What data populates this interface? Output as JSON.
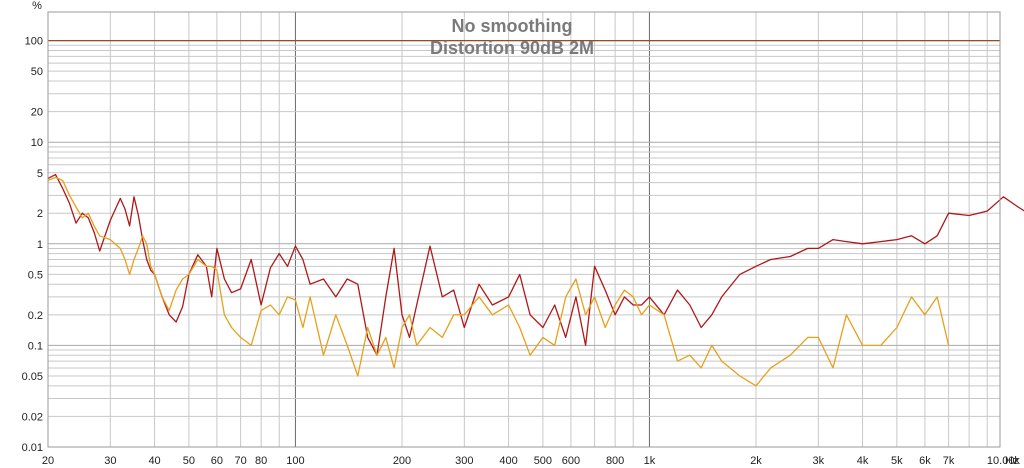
{
  "chart_data": {
    "type": "line",
    "title": "No smoothing",
    "subtitle": "Distortion 90dB 2M",
    "y_unit": "%",
    "x_unit": "Hz",
    "x_scale": "log",
    "y_scale": "log",
    "xlim": [
      20,
      20000
    ],
    "ylim": [
      0.01,
      200
    ],
    "grid": true,
    "colors": {
      "background": "#ffffff",
      "plot_border": "#9a9a9a",
      "grid_minor": "#c8c8c8",
      "grid_major": "#6a6a6a",
      "reference_line": "#9b4a1c",
      "series_red": "#b01818",
      "series_orange": "#e8a01c"
    },
    "x_ticks": [
      {
        "value": 20,
        "label": "20"
      },
      {
        "value": 30,
        "label": "30"
      },
      {
        "value": 40,
        "label": "40"
      },
      {
        "value": 50,
        "label": "50"
      },
      {
        "value": 60,
        "label": "60"
      },
      {
        "value": 70,
        "label": "70"
      },
      {
        "value": 80,
        "label": "80"
      },
      {
        "value": 100,
        "label": "100"
      },
      {
        "value": 200,
        "label": "200"
      },
      {
        "value": 300,
        "label": "300"
      },
      {
        "value": 400,
        "label": "400"
      },
      {
        "value": 500,
        "label": "500"
      },
      {
        "value": 600,
        "label": "600"
      },
      {
        "value": 800,
        "label": "800"
      },
      {
        "value": 1000,
        "label": "1k"
      },
      {
        "value": 2000,
        "label": "2k"
      },
      {
        "value": 3000,
        "label": "3k"
      },
      {
        "value": 4000,
        "label": "4k"
      },
      {
        "value": 5000,
        "label": "5k"
      },
      {
        "value": 6000,
        "label": "6k"
      },
      {
        "value": 7000,
        "label": "7k"
      },
      {
        "value": 10000,
        "label": "10.00k"
      }
    ],
    "y_ticks": [
      {
        "value": 100,
        "label": "100"
      },
      {
        "value": 50,
        "label": "50"
      },
      {
        "value": 20,
        "label": "20"
      },
      {
        "value": 10,
        "label": "10"
      },
      {
        "value": 5,
        "label": "5"
      },
      {
        "value": 2,
        "label": "2"
      },
      {
        "value": 1,
        "label": "1"
      },
      {
        "value": 0.5,
        "label": "0.5"
      },
      {
        "value": 0.2,
        "label": "0.2"
      },
      {
        "value": 0.1,
        "label": "0.1"
      },
      {
        "value": 0.05,
        "label": "0.05"
      },
      {
        "value": 0.02,
        "label": "0.02"
      },
      {
        "value": 0.01,
        "label": "0.01"
      }
    ],
    "reference_line": {
      "y": 100
    },
    "series": [
      {
        "color": "#b01818",
        "x": [
          20,
          21,
          22,
          23,
          24,
          25,
          26,
          27,
          28,
          30,
          32,
          33,
          34,
          35,
          36,
          37,
          38,
          39,
          40,
          42,
          44,
          46,
          48,
          50,
          53,
          56,
          58,
          60,
          63,
          66,
          70,
          75,
          80,
          85,
          90,
          95,
          100,
          105,
          110,
          120,
          130,
          140,
          150,
          160,
          170,
          180,
          190,
          200,
          210,
          220,
          240,
          260,
          280,
          300,
          330,
          360,
          400,
          430,
          460,
          500,
          540,
          580,
          620,
          660,
          700,
          750,
          800,
          850,
          900,
          950,
          1000,
          1100,
          1200,
          1300,
          1400,
          1500,
          1600,
          1800,
          2000,
          2200,
          2500,
          2800,
          3000,
          3300,
          3600,
          4000,
          4500,
          5000,
          5500,
          6000,
          6500,
          7000,
          8000,
          9000,
          10000,
          11000,
          12000,
          13000
        ],
        "y": [
          4.4,
          4.8,
          3.5,
          2.5,
          1.6,
          2.0,
          1.8,
          1.3,
          0.85,
          1.7,
          2.8,
          2.2,
          1.5,
          2.9,
          1.9,
          1.1,
          0.7,
          0.55,
          0.5,
          0.3,
          0.2,
          0.17,
          0.24,
          0.5,
          0.78,
          0.6,
          0.3,
          0.9,
          0.45,
          0.33,
          0.36,
          0.7,
          0.25,
          0.58,
          0.8,
          0.6,
          0.95,
          0.7,
          0.4,
          0.45,
          0.3,
          0.45,
          0.4,
          0.12,
          0.08,
          0.3,
          0.9,
          0.2,
          0.12,
          0.25,
          0.95,
          0.3,
          0.35,
          0.15,
          0.4,
          0.25,
          0.3,
          0.5,
          0.2,
          0.15,
          0.25,
          0.12,
          0.3,
          0.1,
          0.6,
          0.35,
          0.2,
          0.3,
          0.25,
          0.25,
          0.3,
          0.2,
          0.35,
          0.25,
          0.15,
          0.2,
          0.3,
          0.5,
          0.6,
          0.7,
          0.75,
          0.9,
          0.9,
          1.1,
          1.05,
          1.0,
          1.05,
          1.1,
          1.2,
          1.0,
          1.2,
          2.0,
          1.9,
          2.1,
          2.9,
          2.3,
          1.9,
          1.8
        ]
      },
      {
        "color": "#e8a01c",
        "x": [
          20,
          21,
          22,
          23,
          24,
          25,
          26,
          27,
          28,
          30,
          32,
          33,
          34,
          35,
          36,
          37,
          38,
          39,
          40,
          42,
          44,
          46,
          48,
          50,
          53,
          56,
          58,
          60,
          63,
          66,
          70,
          75,
          80,
          85,
          90,
          95,
          100,
          105,
          110,
          120,
          130,
          140,
          150,
          160,
          170,
          180,
          190,
          200,
          210,
          220,
          240,
          260,
          280,
          300,
          330,
          360,
          400,
          430,
          460,
          500,
          540,
          580,
          620,
          660,
          700,
          750,
          800,
          850,
          900,
          950,
          1000,
          1100,
          1200,
          1300,
          1400,
          1500,
          1600,
          1800,
          2000,
          2200,
          2500,
          2800,
          3000,
          3300,
          3600,
          4000,
          4500,
          5000,
          5500,
          6000,
          6500,
          7000
        ],
        "y": [
          4.2,
          4.5,
          4.2,
          3.0,
          2.3,
          1.8,
          2.0,
          1.5,
          1.2,
          1.1,
          0.9,
          0.7,
          0.5,
          0.7,
          0.9,
          1.2,
          1.0,
          0.6,
          0.5,
          0.3,
          0.22,
          0.35,
          0.45,
          0.5,
          0.7,
          0.6,
          0.6,
          0.55,
          0.2,
          0.15,
          0.12,
          0.1,
          0.22,
          0.25,
          0.2,
          0.3,
          0.28,
          0.15,
          0.3,
          0.08,
          0.2,
          0.1,
          0.05,
          0.15,
          0.08,
          0.12,
          0.06,
          0.15,
          0.2,
          0.1,
          0.15,
          0.12,
          0.2,
          0.2,
          0.3,
          0.2,
          0.25,
          0.15,
          0.08,
          0.12,
          0.1,
          0.3,
          0.45,
          0.2,
          0.3,
          0.15,
          0.25,
          0.35,
          0.3,
          0.2,
          0.25,
          0.2,
          0.07,
          0.08,
          0.06,
          0.1,
          0.07,
          0.05,
          0.04,
          0.06,
          0.08,
          0.12,
          0.12,
          0.06,
          0.2,
          0.1,
          0.1,
          0.15,
          0.3,
          0.2,
          0.3,
          0.1
        ]
      }
    ]
  }
}
